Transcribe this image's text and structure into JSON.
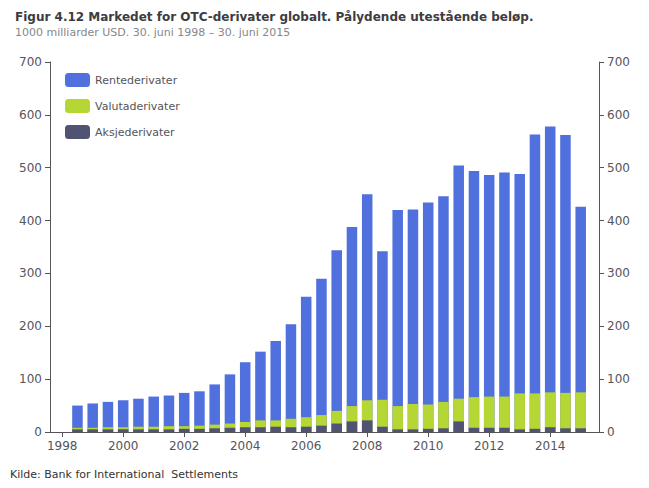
{
  "chart_data": {
    "type": "bar",
    "title": "Figur 4.12 Markedet for OTC-derivater globalt. Pålydende utestående beløp.",
    "subtitle": "1000 milliarder USD. 30. juni 1998 – 30. juni 2015",
    "annotations": [
      "Kilde: Bank for International  Settlements"
    ],
    "x": [
      1998.5,
      1999.0,
      1999.5,
      2000.0,
      2000.5,
      2001.0,
      2001.5,
      2002.0,
      2002.5,
      2003.0,
      2003.5,
      2004.0,
      2004.5,
      2005.0,
      2005.5,
      2006.0,
      2006.5,
      2007.0,
      2007.5,
      2008.0,
      2008.5,
      2009.0,
      2009.5,
      2010.0,
      2010.5,
      2011.0,
      2011.5,
      2012.0,
      2012.5,
      2013.0,
      2013.5,
      2014.0,
      2014.5,
      2015.0
    ],
    "series": [
      {
        "name": "Rentederivater",
        "values": [
          50,
          54,
          57,
          60,
          63,
          67,
          69,
          74,
          77,
          90,
          109,
          132,
          152,
          172,
          204,
          256,
          290,
          344,
          388,
          450,
          342,
          420,
          421,
          434,
          446,
          504,
          494,
          486,
          491,
          488,
          563,
          578,
          562,
          426
        ]
      },
      {
        "name": "Valutaderivater",
        "values": [
          8,
          8,
          9,
          9,
          10,
          10,
          11,
          11,
          12,
          14,
          16,
          19,
          22,
          22,
          25,
          28,
          32,
          40,
          49,
          60,
          61,
          49,
          53,
          52,
          57,
          63,
          66,
          67,
          67,
          73,
          73,
          75,
          74,
          75
        ]
      },
      {
        "name": "Aksjederivater",
        "values": [
          5,
          5,
          5,
          5,
          5,
          5,
          5,
          6,
          6,
          7,
          8,
          9,
          9,
          10,
          9,
          10,
          12,
          16,
          20,
          22,
          10,
          5,
          5,
          6,
          7,
          20,
          8,
          8,
          8,
          5,
          6,
          9,
          7,
          7
        ]
      }
    ],
    "stacked": true,
    "xlim": [
      1997.6,
      2015.6
    ],
    "xticks": [
      1998,
      2000,
      2002,
      2004,
      2006,
      2008,
      2010,
      2012,
      2014
    ],
    "ylim": [
      0,
      700
    ],
    "yticks": [
      0,
      100,
      200,
      300,
      400,
      500,
      600,
      700
    ],
    "y2lim": [
      0,
      700
    ],
    "y2ticks": [
      0,
      100,
      200,
      300,
      400,
      500,
      600,
      700
    ],
    "grid": false,
    "legend": "upper left"
  }
}
